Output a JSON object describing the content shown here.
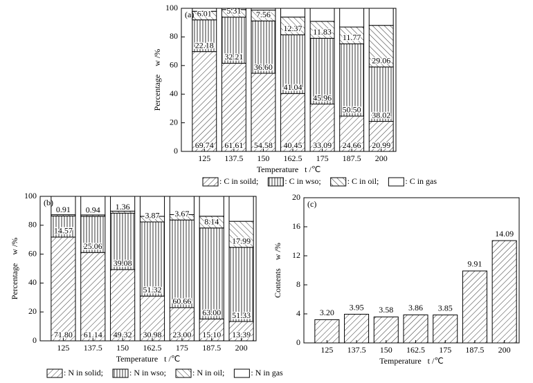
{
  "chart_data": [
    {
      "type": "bar",
      "stacked": true,
      "panel_label": "(a)",
      "xlabel": "Temperature   t /℃",
      "ylabel": "Percentage    w /%",
      "categories": [
        "125",
        "137.5",
        "150",
        "162.5",
        "175",
        "187.5",
        "200"
      ],
      "ylim": [
        0,
        100
      ],
      "yticks": [
        0,
        20,
        40,
        60,
        80,
        100
      ],
      "series": [
        {
          "name": ": C in soild;",
          "pattern": "forward",
          "values": [
            69.74,
            61.61,
            54.58,
            40.45,
            33.09,
            24.66,
            20.99
          ],
          "value_labels": [
            "69.74",
            "61.61",
            "54.58",
            "40.45",
            "33.09",
            "24.66",
            "20.99"
          ]
        },
        {
          "name": ": C in wso;",
          "pattern": "vertical",
          "values": [
            22.18,
            32.21,
            36.6,
            41.04,
            45.96,
            50.5,
            38.02
          ],
          "value_labels": [
            "22.18",
            "32.21",
            "36.60",
            "41.04",
            "45.96",
            "50.50",
            "38.02"
          ]
        },
        {
          "name": ": C in oil;",
          "pattern": "backward",
          "values": [
            6.01,
            5.31,
            7.56,
            12.37,
            11.83,
            11.77,
            29.06
          ],
          "value_labels": [
            "6.01",
            "5.31",
            "7.56",
            "12.37",
            "11.83",
            "11.77",
            "29.06"
          ]
        },
        {
          "name": ": C in gas",
          "pattern": "none",
          "values": [
            2.07,
            0.87,
            1.26,
            6.14,
            9.12,
            13.07,
            11.93
          ]
        }
      ]
    },
    {
      "type": "bar",
      "stacked": true,
      "panel_label": "(b)",
      "xlabel": "Temperature   t /℃",
      "ylabel": "Percentage    w /%",
      "categories": [
        "125",
        "137.5",
        "150",
        "162.5",
        "175",
        "187.5",
        "200"
      ],
      "ylim": [
        0,
        100
      ],
      "yticks": [
        0,
        20,
        40,
        60,
        80,
        100
      ],
      "series": [
        {
          "name": ": N in solid;",
          "pattern": "forward",
          "values": [
            71.8,
            61.14,
            49.32,
            30.98,
            23.0,
            15.1,
            13.39
          ],
          "value_labels": [
            "71.80",
            "61.14",
            "49.32",
            "30.98",
            "23.00",
            "15.10",
            "13.39"
          ]
        },
        {
          "name": ": N in wso;",
          "pattern": "vertical",
          "values": [
            14.57,
            25.06,
            39.08,
            51.32,
            60.66,
            63.0,
            51.33
          ],
          "value_labels": [
            "14.57",
            "25.06",
            "39.08",
            "51.32",
            "60.66",
            "63.00",
            "51.33"
          ]
        },
        {
          "name": ": N in oil;",
          "pattern": "backward",
          "values": [
            0.91,
            0.94,
            1.36,
            3.87,
            3.67,
            8.14,
            17.99
          ],
          "value_labels": [
            "0.91",
            "0.94",
            "1.36",
            "3.87",
            "3.67",
            "8.14",
            "17.99"
          ]
        },
        {
          "name": ": N in gas",
          "pattern": "none",
          "values": [
            12.72,
            12.86,
            10.24,
            13.83,
            12.67,
            13.76,
            17.29
          ]
        }
      ]
    },
    {
      "type": "bar",
      "panel_label": "(c)",
      "xlabel": "Temperature   t /℃",
      "ylabel": "Contents    w /%",
      "categories": [
        "125",
        "137.5",
        "150",
        "162.5",
        "175",
        "187.5",
        "200"
      ],
      "ylim": [
        0,
        20
      ],
      "yticks": [
        0,
        4,
        8,
        12,
        16,
        20
      ],
      "pattern": "forward",
      "values": [
        3.2,
        3.95,
        3.58,
        3.86,
        3.85,
        9.91,
        14.09
      ],
      "value_labels": [
        "3.20",
        "3.95",
        "3.58",
        "3.86",
        "3.85",
        "9.91",
        "14.09"
      ]
    }
  ]
}
